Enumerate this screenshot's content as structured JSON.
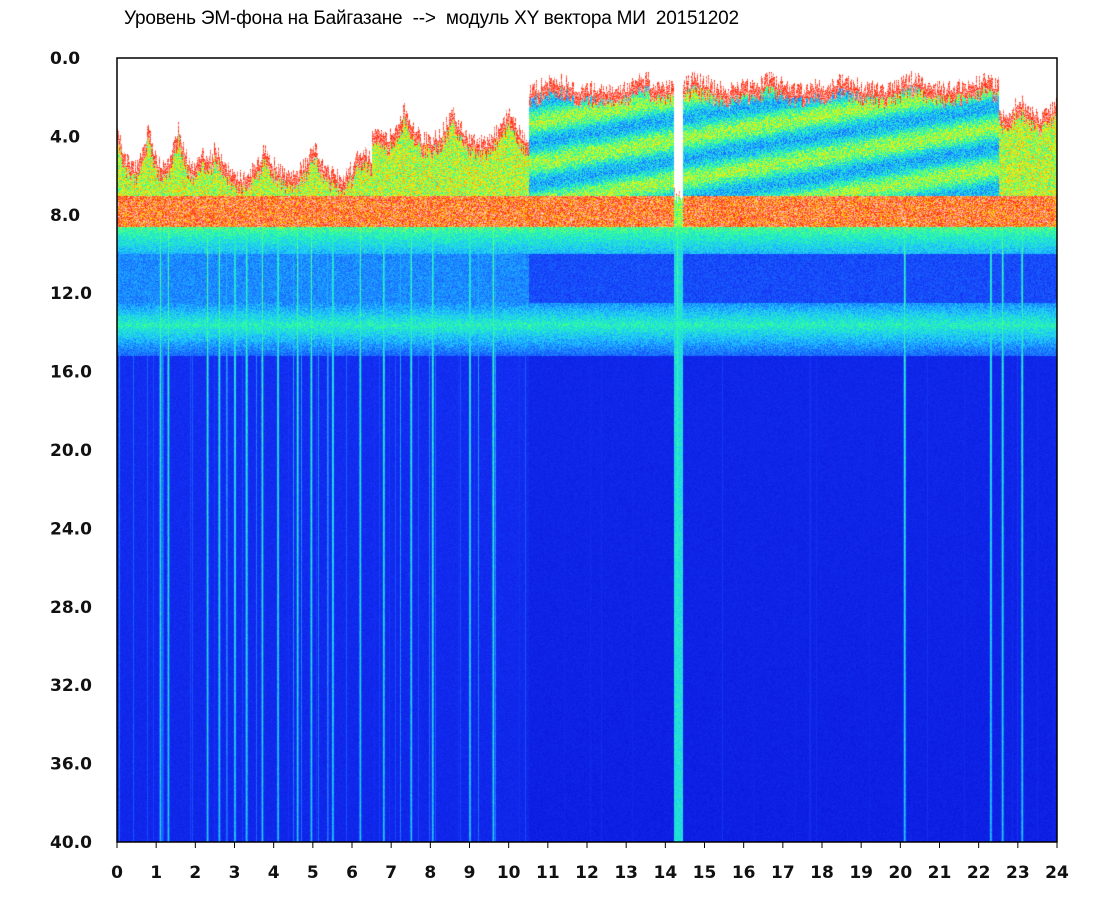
{
  "chart_data": {
    "type": "heatmap",
    "title": "Уровень ЭМ-фона на Байгазане  -->  модуль XY вектора МИ  20151202",
    "xlabel": "",
    "ylabel": "",
    "x_range": [
      0,
      24
    ],
    "y_range": [
      0.0,
      40.0
    ],
    "y_inverted": true,
    "x_ticks": [
      "0",
      "1",
      "2",
      "3",
      "4",
      "5",
      "6",
      "7",
      "8",
      "9",
      "10",
      "11",
      "12",
      "13",
      "14",
      "15",
      "16",
      "17",
      "18",
      "19",
      "20",
      "21",
      "22",
      "23",
      "24"
    ],
    "y_ticks": [
      "0.0",
      "4.0",
      "8.0",
      "12.0",
      "16.0",
      "20.0",
      "24.0",
      "28.0",
      "32.0",
      "36.0",
      "40.0"
    ],
    "colormap": [
      "#0a1ee6",
      "#1e4bff",
      "#1fc8ff",
      "#2bff9a",
      "#d4ff1a",
      "#ff2a14",
      "#ffffff"
    ],
    "colors": {
      "background_level": "#0a1ee6",
      "high_level": "#ff2a14",
      "saturation": "#ffffff"
    },
    "grid": false,
    "legend": "none",
    "features": {
      "red_band_y": [
        6.5,
        8.5
      ],
      "secondary_band_y": [
        12.5,
        15.0
      ],
      "noise_top_day_hours": [
        10.5,
        14.2
      ],
      "noise_top_evening_hours": [
        14.5,
        22.5
      ],
      "gap_x": 14.3
    }
  }
}
